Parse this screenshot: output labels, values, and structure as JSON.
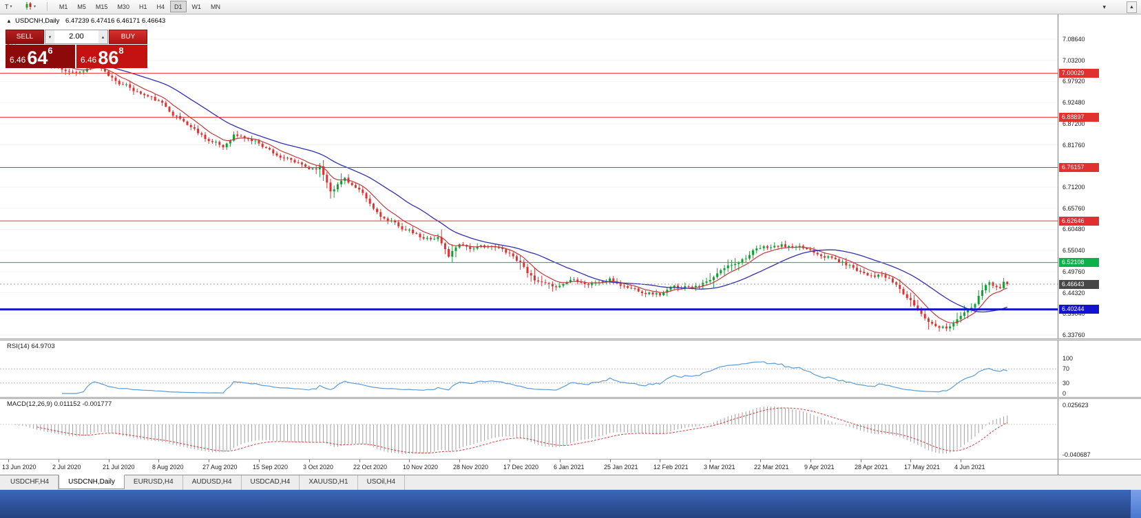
{
  "toolbar": {
    "chart_type_label": "T",
    "timeframes": [
      "M1",
      "M5",
      "M15",
      "M30",
      "H1",
      "H4",
      "D1",
      "W1",
      "MN"
    ],
    "active_timeframe": "D1"
  },
  "chart": {
    "title_symbol": "USDCNH,Daily",
    "title_ohlc": "6.47239 6.47416 6.46171 6.46643"
  },
  "trade_panel": {
    "sell_label": "SELL",
    "buy_label": "BUY",
    "volume": "2.00",
    "sell_price": {
      "prefix": "6.46",
      "big": "64",
      "sup": "6"
    },
    "buy_price": {
      "prefix": "6.46",
      "big": "86",
      "sup": "8"
    }
  },
  "tabs": [
    {
      "label": "USDCHF,H4",
      "active": false
    },
    {
      "label": "USDCNH,Daily",
      "active": true
    },
    {
      "label": "EURUSD,H4",
      "active": false
    },
    {
      "label": "AUDUSD,H4",
      "active": false
    },
    {
      "label": "USDCAD,H4",
      "active": false
    },
    {
      "label": "XAUUSD,H1",
      "active": false
    },
    {
      "label": "USOil,H4",
      "active": false
    }
  ],
  "chart_data": {
    "type": "candlestick",
    "symbol": "USDCNH",
    "timeframe": "Daily",
    "last_ohlc": {
      "open": 6.47239,
      "high": 6.47416,
      "low": 6.46171,
      "close": 6.46643
    },
    "price_axis_ticks": [
      "7.08640",
      "7.03200",
      "6.97920",
      "6.92480",
      "6.87200",
      "6.81760",
      "6.76480",
      "6.71200",
      "6.65760",
      "6.60480",
      "6.55040",
      "6.49760",
      "6.44320",
      "6.39040",
      "6.33760"
    ],
    "date_ticks": [
      "13 Jun 2020",
      "2 Jul 2020",
      "21 Jul 2020",
      "8 Aug 2020",
      "27 Aug 2020",
      "15 Sep 2020",
      "3 Oct 2020",
      "22 Oct 2020",
      "10 Nov 2020",
      "28 Nov 2020",
      "17 Dec 2020",
      "6 Jan 2021",
      "25 Jan 2021",
      "12 Feb 2021",
      "3 Mar 2021",
      "22 Mar 2021",
      "9 Apr 2021",
      "28 Apr 2021",
      "17 May 2021",
      "4 Jun 2021"
    ],
    "horizontal_lines": [
      {
        "price": "7.00029",
        "value": 7.00029,
        "color": "#e03030",
        "width": 1
      },
      {
        "price": "6.88897",
        "value": 6.88897,
        "color": "#e03030",
        "width": 1
      },
      {
        "price": "6.76157",
        "value": 6.76157,
        "color": "#e03030",
        "width": 1
      },
      {
        "price": "6.62646",
        "value": 6.62646,
        "color": "#e03030",
        "width": 1
      },
      {
        "price": "6.52108",
        "value": 6.52108,
        "color": "#0db04b",
        "width": 1
      },
      {
        "price": "6.40244",
        "value": 6.40244,
        "color": "#1212d0",
        "width": 3
      }
    ],
    "current_price": {
      "label": "6.46643",
      "value": 6.46643,
      "badge_color": "#474747"
    },
    "candle_count": 280,
    "candles_per_date_tick": 14,
    "close_path": [
      [
        0,
        7.07
      ],
      [
        7,
        7.04
      ],
      [
        14,
        7.012
      ],
      [
        20,
        7.005
      ],
      [
        24,
        7.022
      ],
      [
        28,
        6.992
      ],
      [
        35,
        6.958
      ],
      [
        42,
        6.928
      ],
      [
        49,
        6.878
      ],
      [
        56,
        6.832
      ],
      [
        60,
        6.812
      ],
      [
        63,
        6.846
      ],
      [
        70,
        6.824
      ],
      [
        77,
        6.784
      ],
      [
        84,
        6.758
      ],
      [
        87,
        6.764
      ],
      [
        90,
        6.706
      ],
      [
        94,
        6.736
      ],
      [
        98,
        6.702
      ],
      [
        102,
        6.654
      ],
      [
        106,
        6.626
      ],
      [
        112,
        6.6
      ],
      [
        116,
        6.578
      ],
      [
        120,
        6.586
      ],
      [
        123,
        6.538
      ],
      [
        126,
        6.572
      ],
      [
        130,
        6.556
      ],
      [
        134,
        6.563
      ],
      [
        140,
        6.546
      ],
      [
        144,
        6.514
      ],
      [
        147,
        6.474
      ],
      [
        151,
        6.458
      ],
      [
        154,
        6.463
      ],
      [
        158,
        6.483
      ],
      [
        162,
        6.468
      ],
      [
        168,
        6.477
      ],
      [
        172,
        6.461
      ],
      [
        176,
        6.452
      ],
      [
        182,
        6.441
      ],
      [
        186,
        6.457
      ],
      [
        190,
        6.463
      ],
      [
        196,
        6.474
      ],
      [
        200,
        6.505
      ],
      [
        204,
        6.526
      ],
      [
        208,
        6.549
      ],
      [
        212,
        6.559
      ],
      [
        216,
        6.563
      ],
      [
        220,
        6.556
      ],
      [
        224,
        6.552
      ],
      [
        228,
        6.542
      ],
      [
        232,
        6.524
      ],
      [
        236,
        6.509
      ],
      [
        240,
        6.494
      ],
      [
        244,
        6.489
      ],
      [
        248,
        6.463
      ],
      [
        252,
        6.422
      ],
      [
        255,
        6.392
      ],
      [
        258,
        6.368
      ],
      [
        262,
        6.359
      ],
      [
        265,
        6.377
      ],
      [
        267,
        6.393
      ],
      [
        270,
        6.413
      ],
      [
        272,
        6.449
      ],
      [
        274,
        6.473
      ],
      [
        277,
        6.456
      ],
      [
        279,
        6.46643
      ]
    ],
    "volatile_ranges": [
      [
        86,
        93
      ],
      [
        120,
        127
      ],
      [
        143,
        152
      ],
      [
        196,
        204
      ],
      [
        249,
        258
      ],
      [
        265,
        274
      ]
    ],
    "up_color": "#119f2f",
    "down_color": "#e03131",
    "ma_fast": {
      "period": 8,
      "color": "#c03a3a"
    },
    "ma_slow": {
      "period": 24,
      "color": "#3030b0"
    },
    "rsi_panel": {
      "label": "RSI(14) 64.9703",
      "period": 14,
      "last_value": 64.9703,
      "axis_ticks": [
        "100",
        "70",
        "30",
        "0"
      ],
      "levels": [
        70,
        30
      ],
      "line_color": "#5b9bd5"
    },
    "macd_panel": {
      "label": "MACD(12,26,9) 0.011152 -0.001777",
      "params": [
        12,
        26,
        9
      ],
      "macd_value": 0.011152,
      "signal_value": -0.001777,
      "axis_max": "0.025623",
      "axis_min": "-0.040687",
      "hist_color": "#a0a0a0",
      "signal_color": "#d04040"
    }
  }
}
